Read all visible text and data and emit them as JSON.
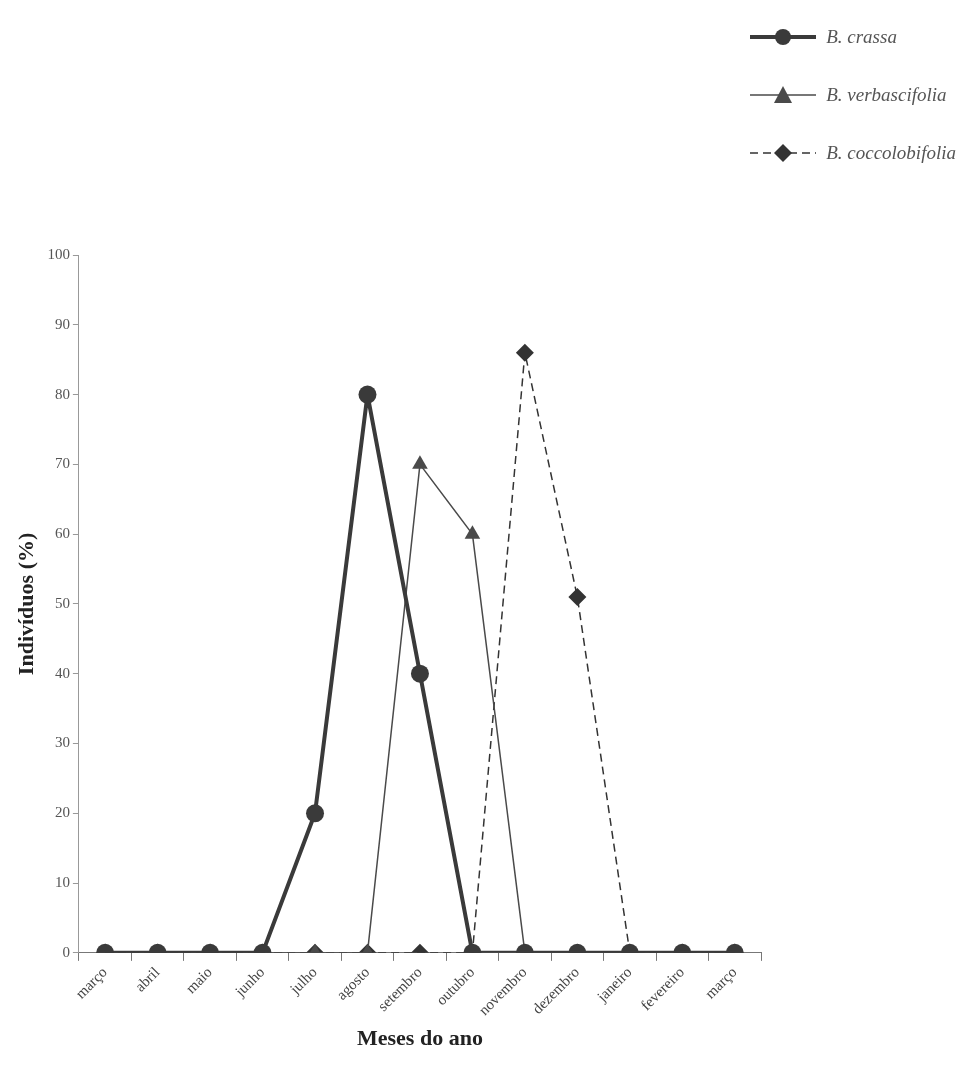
{
  "chart_data": {
    "type": "line",
    "xlabel": "Meses do ano",
    "ylabel": "Indivíduos (%)",
    "categories": [
      "março",
      "abril",
      "maio",
      "junho",
      "julho",
      "agosto",
      "setembro",
      "outubro",
      "novembro",
      "dezembro",
      "janeiro",
      "fevereiro",
      "março"
    ],
    "series": [
      {
        "name": "B. crassa",
        "color": "#3a3a3a",
        "marker": "circle",
        "line_style": "solid",
        "values": [
          0,
          0,
          0,
          0,
          20,
          80,
          40,
          0,
          0,
          0,
          0,
          0,
          0
        ]
      },
      {
        "name": "B. verbascifolia",
        "color": "#4a4a4a",
        "marker": "triangle",
        "line_style": "solid",
        "values": [
          0,
          0,
          0,
          0,
          0,
          0,
          70,
          60,
          0,
          0,
          0,
          0,
          0
        ]
      },
      {
        "name": "B. coccolobifolia",
        "color": "#333333",
        "marker": "diamond",
        "line_style": "dashed",
        "values": [
          0,
          0,
          0,
          0,
          0,
          0,
          0,
          0,
          86,
          51,
          0,
          0,
          0
        ]
      }
    ],
    "ylim": [
      0,
      100
    ],
    "yticks": [
      0,
      10,
      20,
      30,
      40,
      50,
      60,
      70,
      80,
      90,
      100
    ],
    "grid": false,
    "legend": "top right"
  }
}
